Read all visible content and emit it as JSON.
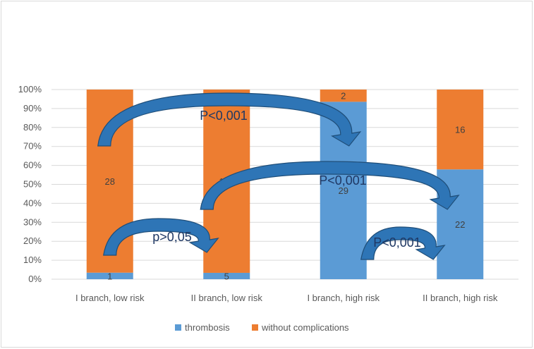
{
  "chart_data": {
    "type": "bar",
    "stacked": "100%",
    "categories": [
      "I branch, low risk",
      "II branch, low risk",
      "I branch, high risk",
      "II branch, high risk"
    ],
    "series": [
      {
        "name": "thrombosis",
        "values": [
          1,
          5,
          29,
          22
        ],
        "color": "#5b9bd5"
      },
      {
        "name": "without complications",
        "values": [
          28,
          144,
          2,
          16
        ],
        "color": "#ed7d31"
      }
    ],
    "y_ticks": [
      "0%",
      "10%",
      "20%",
      "30%",
      "40%",
      "50%",
      "60%",
      "70%",
      "80%",
      "90%",
      "100%"
    ],
    "ylim": [
      0,
      100
    ],
    "grid": true,
    "legend_position": "bottom",
    "annotations": [
      {
        "text": "P<0,001",
        "from": "I branch, low risk",
        "to": "I branch, high risk"
      },
      {
        "text": "P<0,001",
        "from": "II branch, low risk",
        "to": "II branch, high risk"
      },
      {
        "text": "p>0,05",
        "from": "I branch, low risk",
        "to": "II branch, low risk"
      },
      {
        "text": "P<0,001",
        "from": "I branch, high risk",
        "to": "II branch, high risk"
      }
    ],
    "arrow_color": "#2e75b6"
  }
}
